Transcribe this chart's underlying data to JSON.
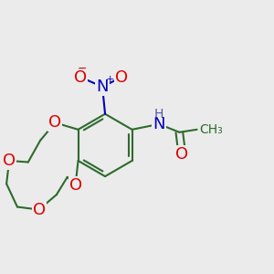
{
  "bg_color": "#ebebeb",
  "bond_color": "#2d6b2d",
  "bond_width": 1.5,
  "atom_colors": {
    "O": "#dd0000",
    "N": "#0000bb",
    "H": "#5555aa"
  },
  "font_size": 13,
  "font_size_h": 10
}
